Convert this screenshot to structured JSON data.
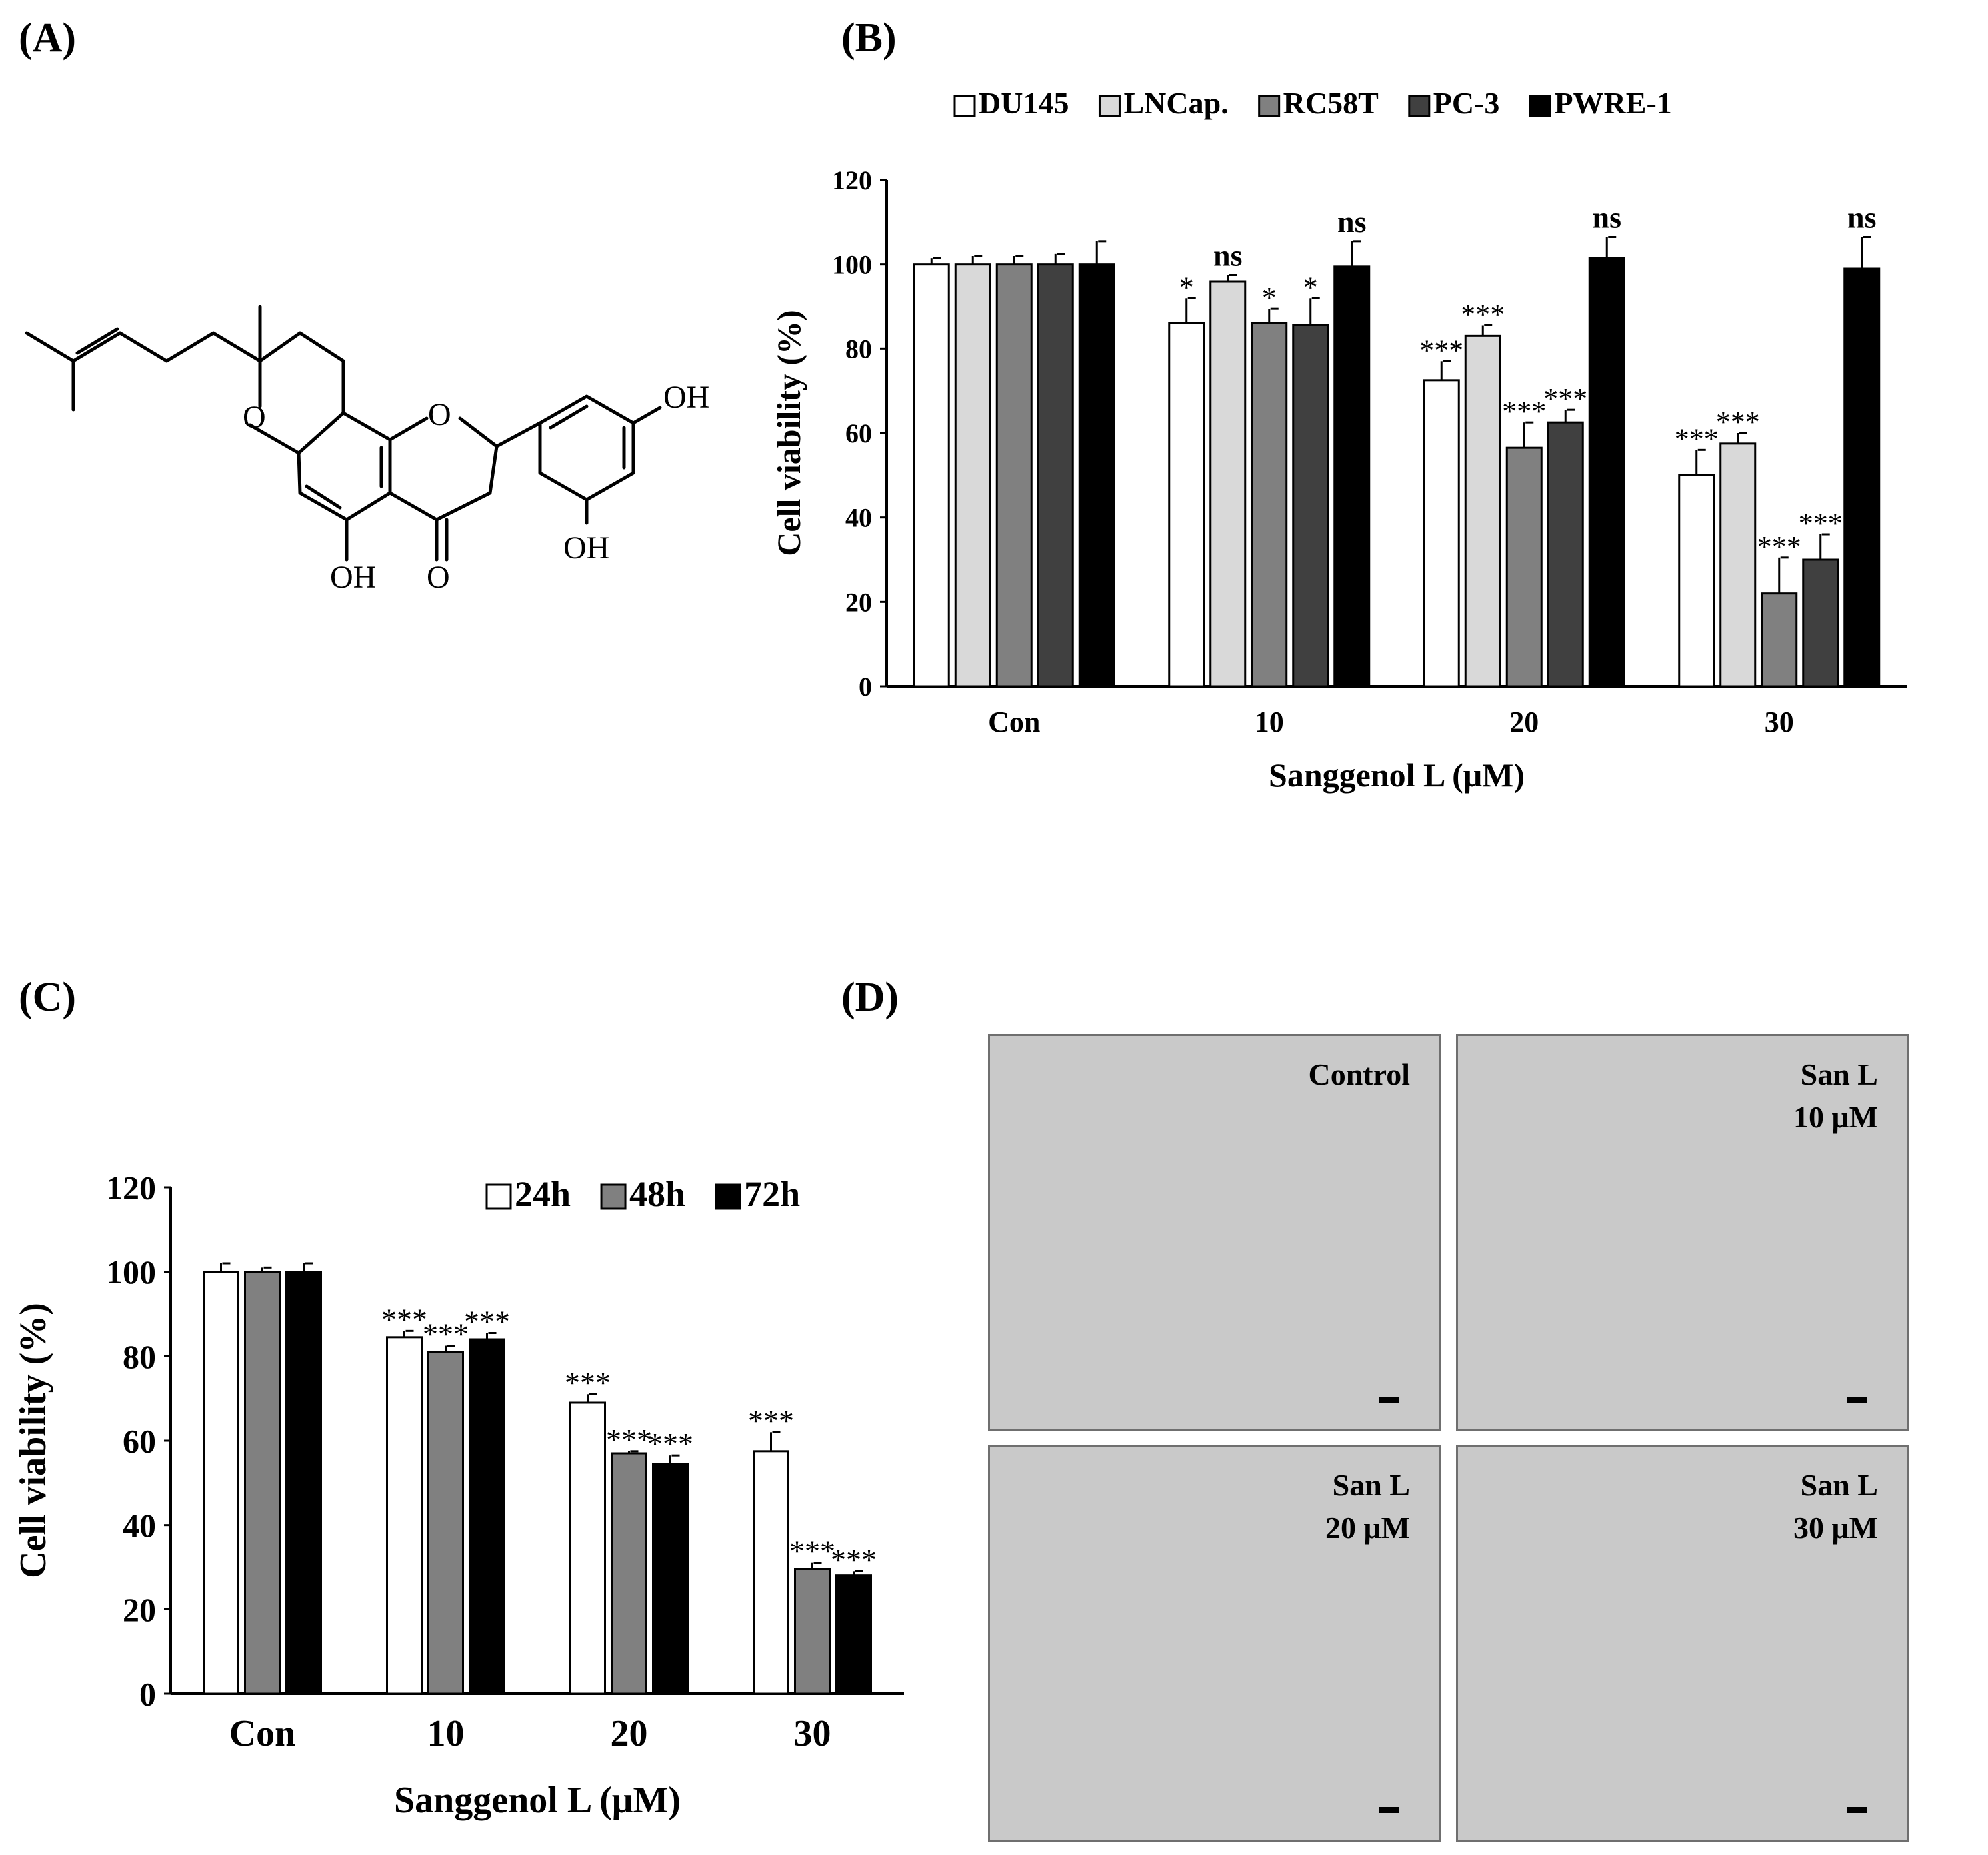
{
  "panels": {
    "a": "(A)",
    "b": "(B)",
    "c": "(C)",
    "d": "(D)"
  },
  "structure": {
    "labels": [
      "OH",
      "OH",
      "OH",
      "O",
      "O",
      "O"
    ]
  },
  "colors": {
    "DU145": "#ffffff",
    "LNCap.": "#d9d9d9",
    "RC58T": "#808080",
    "PC-3": "#404040",
    "PWRE-1": "#000000",
    "24h": "#ffffff",
    "48h": "#808080",
    "72h": "#000000"
  },
  "chart_data": [
    {
      "panel": "(B)",
      "type": "bar",
      "categories": [
        "Con",
        "10",
        "20",
        "30"
      ],
      "series": [
        {
          "name": "DU145",
          "values": [
            100,
            86,
            72.5,
            50
          ],
          "errors": [
            1.5,
            6,
            4.5,
            6
          ],
          "sig": [
            "",
            "*",
            "***",
            "***"
          ]
        },
        {
          "name": "LNCap.",
          "values": [
            100,
            96,
            83,
            57.5
          ],
          "errors": [
            2,
            1.5,
            2.5,
            2.5
          ],
          "sig": [
            "",
            "ns",
            "***",
            "***"
          ]
        },
        {
          "name": "RC58T",
          "values": [
            100,
            86,
            56.5,
            22
          ],
          "errors": [
            2,
            3.5,
            6,
            8.5
          ],
          "sig": [
            "",
            "*",
            "***",
            "***"
          ]
        },
        {
          "name": "PC-3",
          "values": [
            100,
            85.5,
            62.5,
            30
          ],
          "errors": [
            2.5,
            6.5,
            3,
            6
          ],
          "sig": [
            "",
            "*",
            "***",
            "***"
          ]
        },
        {
          "name": "PWRE-1",
          "values": [
            100,
            99.5,
            101.5,
            99
          ],
          "errors": [
            5.5,
            6,
            5,
            7.5
          ],
          "sig": [
            "",
            "ns",
            "ns",
            "ns"
          ]
        }
      ],
      "xlabel": "Sanggenol L (μM)",
      "ylabel": "Cell viability (%)",
      "yticks": [
        "0",
        "20",
        "40",
        "60",
        "80",
        "100",
        "120"
      ],
      "ylim": [
        0,
        120
      ],
      "legend": "top"
    },
    {
      "panel": "(C)",
      "type": "bar",
      "categories": [
        "Con",
        "10",
        "20",
        "30"
      ],
      "series": [
        {
          "name": "24h",
          "values": [
            100,
            84.5,
            69,
            57.5
          ],
          "errors": [
            2,
            1.5,
            2,
            4.5
          ],
          "sig": [
            "",
            "***",
            "***",
            "***"
          ]
        },
        {
          "name": "48h",
          "values": [
            100,
            81,
            57,
            29.5
          ],
          "errors": [
            1,
            1.5,
            0.5,
            1.5
          ],
          "sig": [
            "",
            "***",
            "***",
            "***"
          ]
        },
        {
          "name": "72h",
          "values": [
            100,
            84,
            54.5,
            28
          ],
          "errors": [
            2,
            1.5,
            2,
            1
          ],
          "sig": [
            "",
            "***",
            "***",
            "***"
          ]
        }
      ],
      "xlabel": "Sanggenol L (μM)",
      "ylabel": "Cell viability (%)",
      "yticks": [
        "0",
        "20",
        "40",
        "60",
        "80",
        "100",
        "120"
      ],
      "ylim": [
        0,
        120
      ],
      "legend": "top-right"
    }
  ],
  "micrographs": [
    {
      "label": "Control"
    },
    {
      "label": "San L\n10 μM"
    },
    {
      "label": "San L\n20 μM"
    },
    {
      "label": "San L\n30 μM"
    }
  ]
}
